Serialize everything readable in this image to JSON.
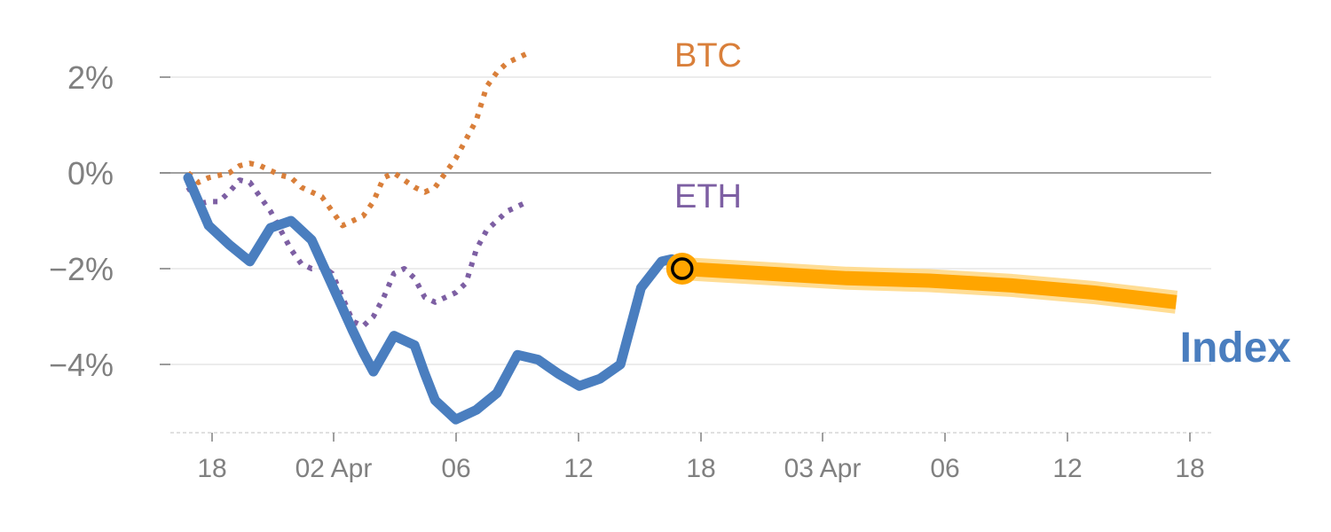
{
  "chart_data": {
    "type": "line",
    "y_ticks": [
      {
        "value": 2,
        "label": "2%"
      },
      {
        "value": 0,
        "label": "0%"
      },
      {
        "value": -2,
        "label": "−2%"
      },
      {
        "value": -4,
        "label": "−4%"
      }
    ],
    "x_ticks": [
      "18",
      "02 Apr",
      "06",
      "12",
      "18",
      "03 Apr",
      "06",
      "12",
      "18"
    ],
    "ylim": [
      -5.5,
      2.8
    ],
    "grid": true,
    "colors": {
      "btc": "#d97f3a",
      "eth": "#7d5fa3",
      "index": "#4a7ebf",
      "forecast": "#ffa500",
      "forecast_halo": "#ffd98a",
      "grid": "#e6e6e6",
      "zero": "#808080",
      "tick": "#808080"
    },
    "series": [
      {
        "name": "BTC",
        "style": "dotted",
        "x": [
          0,
          0.5,
          1,
          1.5,
          2,
          2.5,
          3,
          3.5,
          4,
          4.5,
          5,
          5.5,
          6,
          6.5,
          7,
          7.5,
          8,
          8.5,
          9,
          9.5,
          10,
          10.5,
          11,
          11.5,
          12,
          12.5,
          13,
          13.5,
          14,
          14.5,
          15,
          15.5,
          16,
          16.5
        ],
        "values": [
          0.0,
          -0.2,
          -0.1,
          -0.05,
          0.0,
          0.15,
          0.2,
          0.15,
          0.05,
          -0.05,
          -0.1,
          -0.3,
          -0.4,
          -0.5,
          -0.8,
          -1.1,
          -1.0,
          -0.9,
          -0.6,
          -0.1,
          0.0,
          -0.15,
          -0.3,
          -0.4,
          -0.3,
          0.0,
          0.3,
          0.7,
          1.1,
          1.8,
          2.1,
          2.3,
          2.4,
          2.5
        ]
      },
      {
        "name": "ETH",
        "style": "dotted",
        "x": [
          0,
          0.5,
          1,
          1.5,
          2,
          2.5,
          3,
          3.5,
          4,
          4.5,
          5,
          5.5,
          6,
          6.5,
          7,
          7.5,
          8,
          8.5,
          9,
          9.5,
          10,
          10.5,
          11,
          11.5,
          12,
          12.5,
          13,
          13.5,
          14,
          14.5,
          15,
          15.5,
          16,
          16.5
        ],
        "values": [
          -0.3,
          -0.65,
          -0.6,
          -0.6,
          -0.4,
          -0.15,
          -0.2,
          -0.5,
          -0.8,
          -1.2,
          -1.6,
          -1.9,
          -2.0,
          -1.95,
          -2.1,
          -2.6,
          -3.1,
          -3.2,
          -3.0,
          -2.6,
          -2.1,
          -2.0,
          -2.2,
          -2.6,
          -2.7,
          -2.6,
          -2.5,
          -2.3,
          -1.6,
          -1.2,
          -1.0,
          -0.8,
          -0.7,
          -0.6
        ]
      },
      {
        "name": "Index",
        "style": "solid",
        "x": [
          0,
          1,
          2,
          3,
          4,
          5,
          6,
          7,
          8,
          8.5,
          9,
          10,
          11,
          11.5,
          12,
          13,
          14,
          15,
          15.5,
          16,
          17,
          17.5,
          18,
          19,
          20,
          21,
          22,
          23,
          23.5
        ],
        "values": [
          -0.1,
          -1.1,
          -1.5,
          -1.85,
          -1.15,
          -1.0,
          -1.4,
          -2.35,
          -3.3,
          -3.75,
          -4.15,
          -3.4,
          -3.6,
          -4.2,
          -4.75,
          -5.15,
          -4.95,
          -4.6,
          -4.2,
          -3.8,
          -3.9,
          -4.05,
          -4.2,
          -4.45,
          -4.3,
          -4.0,
          -2.4,
          -1.85,
          -1.8
        ]
      },
      {
        "name": "Index forecast",
        "style": "band",
        "x": [
          24,
          28,
          32,
          36,
          40,
          44,
          48
        ],
        "values": [
          -2.0,
          -2.1,
          -2.2,
          -2.25,
          -2.35,
          -2.5,
          -2.7
        ]
      }
    ],
    "labels": {
      "btc": "BTC",
      "eth": "ETH",
      "index": "Index"
    }
  }
}
